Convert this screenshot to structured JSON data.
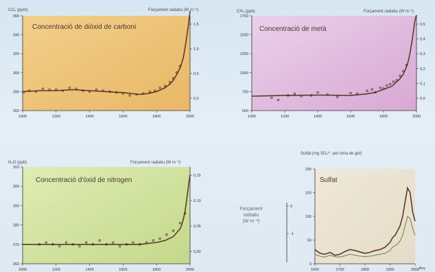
{
  "colors": {
    "background": "#dce8f2",
    "panel_co2": "#e9b766",
    "panel_methane": "#d8a8d4",
    "panel_n2o": "#c4d88a",
    "panel_sulfate": "#e4dcc6",
    "series_line": "#5a3a2a",
    "data_points": "#3a2a2a"
  },
  "forcing_label": [
    "Forçament",
    "radiatiu",
    "(W m⁻²)"
  ],
  "chart_data": [
    {
      "type": "line",
      "title": "Concentració de diòxid de carboni",
      "ylabel": "CO₂ (ppm)",
      "ylabel_right": "Forçament radiatiu (W m⁻²)",
      "xlim": [
        1000,
        2000
      ],
      "ylim": [
        260,
        360
      ],
      "y_ticks": [
        260,
        280,
        300,
        320,
        340,
        360
      ],
      "y_right_ticks": [
        "1,5",
        "1,0",
        "0,5",
        "0,0"
      ],
      "x_ticks": [
        1000,
        1200,
        1400,
        1600,
        1800,
        2000
      ],
      "grid": false,
      "x": [
        1000,
        1100,
        1200,
        1300,
        1400,
        1500,
        1600,
        1700,
        1750,
        1800,
        1850,
        1880,
        1900,
        1920,
        1940,
        1950,
        1960,
        1970,
        1980,
        1990,
        2000
      ],
      "values": [
        280,
        281,
        281,
        282,
        281,
        280,
        279,
        277,
        278,
        280,
        284,
        288,
        292,
        298,
        305,
        310,
        316,
        326,
        338,
        350,
        365
      ],
      "points_x": [
        1005,
        1040,
        1080,
        1120,
        1160,
        1200,
        1240,
        1280,
        1320,
        1360,
        1400,
        1440,
        1480,
        1520,
        1560,
        1600,
        1640,
        1680,
        1720,
        1760,
        1790,
        1820,
        1850,
        1880,
        1900,
        1920,
        1940
      ],
      "points_y": [
        279,
        281,
        280,
        283,
        282,
        282,
        281,
        284,
        283,
        281,
        280,
        282,
        281,
        280,
        279,
        278,
        276,
        277,
        278,
        280,
        281,
        284,
        286,
        290,
        294,
        300,
        307
      ]
    },
    {
      "type": "line",
      "title": "Concentració de metà",
      "ylabel": "CH₄ (ppb)",
      "ylabel_right": "Forçament radiatiu (W m⁻²)",
      "xlim": [
        1000,
        2000
      ],
      "ylim": [
        500,
        1750
      ],
      "y_ticks": [
        500,
        750,
        1000,
        1250,
        1500,
        1750
      ],
      "y_right_ticks": [
        "0,5",
        "0,4",
        "0,3",
        "0,2",
        "0,1",
        "0,0"
      ],
      "x_ticks": [
        1000,
        1200,
        1400,
        1600,
        1800,
        2000
      ],
      "grid": false,
      "x": [
        1000,
        1200,
        1400,
        1600,
        1700,
        1750,
        1800,
        1850,
        1880,
        1900,
        1920,
        1940,
        1950,
        1960,
        1970,
        1980,
        1990,
        2000
      ],
      "values": [
        690,
        700,
        705,
        700,
        720,
        740,
        780,
        820,
        880,
        920,
        980,
        1080,
        1150,
        1250,
        1380,
        1520,
        1680,
        1760
      ],
      "points_x": [
        1120,
        1160,
        1220,
        1260,
        1300,
        1360,
        1400,
        1460,
        1520,
        1600,
        1640,
        1700,
        1730,
        1750,
        1780,
        1800,
        1820,
        1840,
        1860,
        1880,
        1900,
        1920,
        1940
      ],
      "points_y": [
        670,
        640,
        700,
        720,
        690,
        700,
        740,
        710,
        680,
        730,
        720,
        760,
        780,
        740,
        800,
        790,
        830,
        850,
        880,
        900,
        960,
        1020,
        1100
      ]
    },
    {
      "type": "line",
      "title": "Concentració d'òxid de nitrogen",
      "ylabel": "N₂O (ppb)",
      "ylabel_right": "Forçament radiatiu (W m⁻²)",
      "xlim": [
        1000,
        2000
      ],
      "ylim": [
        260,
        310
      ],
      "y_ticks": [
        260,
        270,
        280,
        290,
        300,
        310
      ],
      "y_right_ticks": [
        "0,15",
        "0,10",
        "0,05",
        "0,00"
      ],
      "x_ticks": [
        1000,
        1200,
        1400,
        1600,
        1800,
        2000
      ],
      "grid": false,
      "x": [
        1000,
        1200,
        1400,
        1600,
        1700,
        1800,
        1850,
        1900,
        1920,
        1940,
        1950,
        1960,
        1970,
        1980,
        1990,
        2000
      ],
      "values": [
        270,
        270,
        270,
        270,
        270,
        271,
        272,
        274,
        276,
        278,
        280,
        283,
        287,
        293,
        300,
        306
      ],
      "points_x": [
        1100,
        1140,
        1180,
        1220,
        1260,
        1300,
        1340,
        1380,
        1420,
        1460,
        1500,
        1540,
        1580,
        1620,
        1660,
        1700,
        1740,
        1780,
        1820,
        1860,
        1900,
        1940,
        1970
      ],
      "points_y": [
        270,
        271,
        270,
        269,
        271,
        270,
        269,
        271,
        270,
        272,
        270,
        271,
        269,
        270,
        271,
        270,
        271,
        272,
        273,
        275,
        277,
        281,
        286
      ]
    },
    {
      "type": "line",
      "title": "Sulfat",
      "ylabel": "Sulfat (mg SO₄²⁻ per tona de gel)",
      "x_label": "Any",
      "xlim": [
        1600,
        2000
      ],
      "ylim": [
        0,
        200
      ],
      "y_ticks": [
        0,
        50,
        100,
        150,
        200
      ],
      "x_ticks": [
        1600,
        1700,
        1800,
        1900,
        2000
      ],
      "left_ticks": [
        "0",
        "-1"
      ],
      "grid": false,
      "x": [
        1600,
        1620,
        1640,
        1660,
        1680,
        1700,
        1720,
        1740,
        1760,
        1780,
        1800,
        1820,
        1840,
        1860,
        1880,
        1900,
        1910,
        1920,
        1930,
        1940,
        1950,
        1960,
        1970,
        1980,
        1990,
        2000
      ],
      "values": [
        30,
        22,
        20,
        24,
        18,
        20,
        26,
        30,
        28,
        25,
        22,
        24,
        28,
        30,
        35,
        45,
        55,
        60,
        70,
        80,
        100,
        130,
        160,
        150,
        110,
        90
      ],
      "series2_values": [
        20,
        16,
        14,
        18,
        15,
        14,
        17,
        20,
        18,
        16,
        15,
        16,
        18,
        20,
        22,
        28,
        35,
        38,
        42,
        48,
        60,
        80,
        100,
        95,
        75,
        60
      ]
    }
  ]
}
